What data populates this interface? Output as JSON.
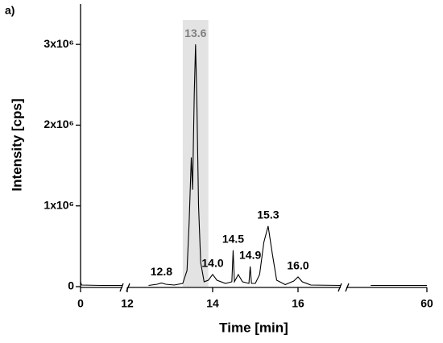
{
  "chart_data": {
    "type": "line",
    "panel_label": "a)",
    "x_label": "Time [min]",
    "y_label": "Intensity [cps]",
    "color": "#000000",
    "x_segments": [
      [
        0,
        12
      ],
      [
        12,
        17
      ],
      [
        17,
        60
      ]
    ],
    "ylim": [
      0,
      3500000
    ],
    "xticks": [
      0,
      12,
      14,
      16,
      60
    ],
    "yticks": [
      0,
      {
        "value": 1000000,
        "label": "1x10⁶"
      },
      {
        "value": 2000000,
        "label": "2x10⁶"
      },
      {
        "value": 3000000,
        "label": "3x10⁶"
      }
    ],
    "highlight": [
      13.3,
      13.9
    ],
    "highlight_color": "#e3e3e3",
    "x": [
      0,
      0.3,
      6,
      11.9,
      12,
      12.5,
      12.7,
      12.8,
      12.9,
      13.1,
      13.3,
      13.4,
      13.45,
      13.5,
      13.53,
      13.57,
      13.6,
      13.63,
      13.67,
      13.72,
      13.8,
      13.9,
      14.0,
      14.1,
      14.3,
      14.45,
      14.48,
      14.51,
      14.6,
      14.7,
      14.85,
      14.88,
      14.91,
      15.0,
      15.1,
      15.2,
      15.3,
      15.4,
      15.5,
      15.7,
      15.9,
      16.0,
      16.1,
      16.3,
      17,
      30,
      60
    ],
    "values": [
      60000,
      20000,
      15000,
      15000,
      15000,
      15000,
      30000,
      45000,
      30000,
      20000,
      40000,
      200000,
      800000,
      1600000,
      1200000,
      2400000,
      3000000,
      2300000,
      1000000,
      300000,
      60000,
      80000,
      150000,
      80000,
      40000,
      60000,
      450000,
      60000,
      150000,
      60000,
      40000,
      250000,
      40000,
      40000,
      150000,
      550000,
      750000,
      400000,
      80000,
      25000,
      70000,
      120000,
      60000,
      20000,
      15000,
      15000,
      15000
    ],
    "annotations": [
      {
        "text": "12.8",
        "x": 12.8,
        "color": "#000000"
      },
      {
        "text": "13.6",
        "x": 13.6,
        "color": "#808080"
      },
      {
        "text": "14.0",
        "x": 14.0,
        "color": "#000000"
      },
      {
        "text": "14.5",
        "x": 14.48,
        "color": "#000000"
      },
      {
        "text": "14.9",
        "x": 14.88,
        "color": "#000000"
      },
      {
        "text": "15.3",
        "x": 15.3,
        "color": "#000000"
      },
      {
        "text": "16.0",
        "x": 16.0,
        "color": "#000000"
      }
    ]
  }
}
